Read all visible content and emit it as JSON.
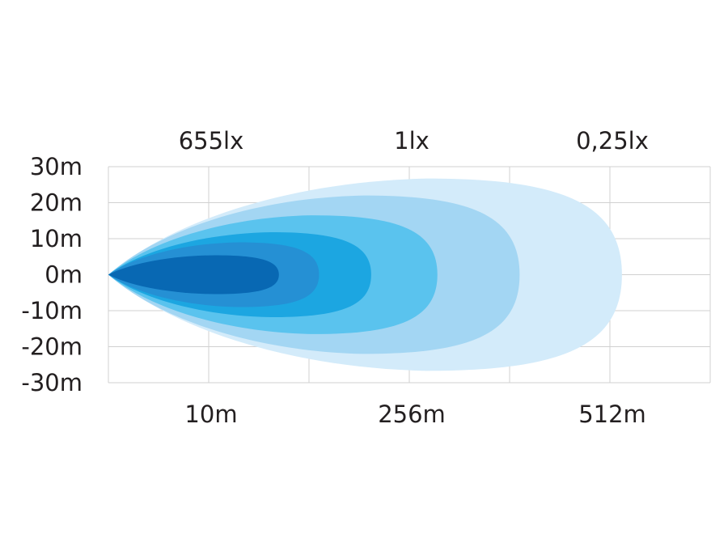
{
  "chart_data": {
    "type": "area",
    "title": "",
    "grid": true,
    "y_ticks": [
      "30m",
      "20m",
      "10m",
      "0m",
      "-10m",
      "-20m",
      "-30m"
    ],
    "ylim": [
      -30,
      30
    ],
    "x_ticks_bottom": [
      "10m",
      "256m",
      "512m"
    ],
    "x_ticks_top": [
      "655lx",
      "1lx",
      "0,25lx"
    ],
    "x_grid_columns": 6,
    "x_label_columns": [
      1,
      3,
      5
    ],
    "contours": [
      {
        "color": "#d3ebfa",
        "reach_columns": 5.12,
        "half_width_m": 26.7
      },
      {
        "color": "#a3d6f3",
        "reach_columns": 4.1,
        "half_width_m": 22
      },
      {
        "color": "#5ac3ee",
        "reach_columns": 3.28,
        "half_width_m": 16.5
      },
      {
        "color": "#1ca6e1",
        "reach_columns": 2.62,
        "half_width_m": 11.8
      },
      {
        "color": "#2590d4",
        "reach_columns": 2.1,
        "half_width_m": 9
      },
      {
        "color": "#0868b3",
        "reach_columns": 1.7,
        "half_width_m": 5.4
      }
    ]
  }
}
